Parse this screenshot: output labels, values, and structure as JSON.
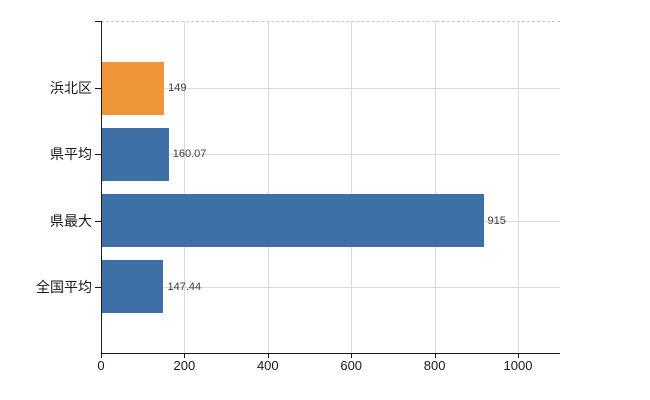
{
  "chart": {
    "background_color": "#ffffff",
    "axis_color": "#1a1a1a",
    "grid_color": "#d9d9d9",
    "category_text_color": "#1a1a1a",
    "value_text_color": "#3d3d3d",
    "tick_text_color": "#1a1a1a"
  },
  "chart_data": {
    "type": "bar",
    "orientation": "horizontal",
    "title": "",
    "xlabel": "",
    "ylabel": "",
    "categories": [
      "浜北区",
      "県平均",
      "県最大",
      "全国平均"
    ],
    "values": [
      149,
      160.07,
      915,
      147.44
    ],
    "value_labels": [
      "149",
      "160.07",
      "915",
      "147.44"
    ],
    "bar_colors": [
      "#ee9639",
      "#3e6fa7",
      "#3e6fa7",
      "#3e6fa7"
    ],
    "highlight_color": "#ee9639",
    "series_color": "#3e6fa7",
    "x_ticks": [
      0,
      200,
      400,
      600,
      800,
      1000
    ],
    "x_tick_labels": [
      "0",
      "200",
      "400",
      "600",
      "800",
      "1000"
    ],
    "xlim": [
      0,
      1100
    ],
    "grid": true,
    "legend_position": "none"
  }
}
